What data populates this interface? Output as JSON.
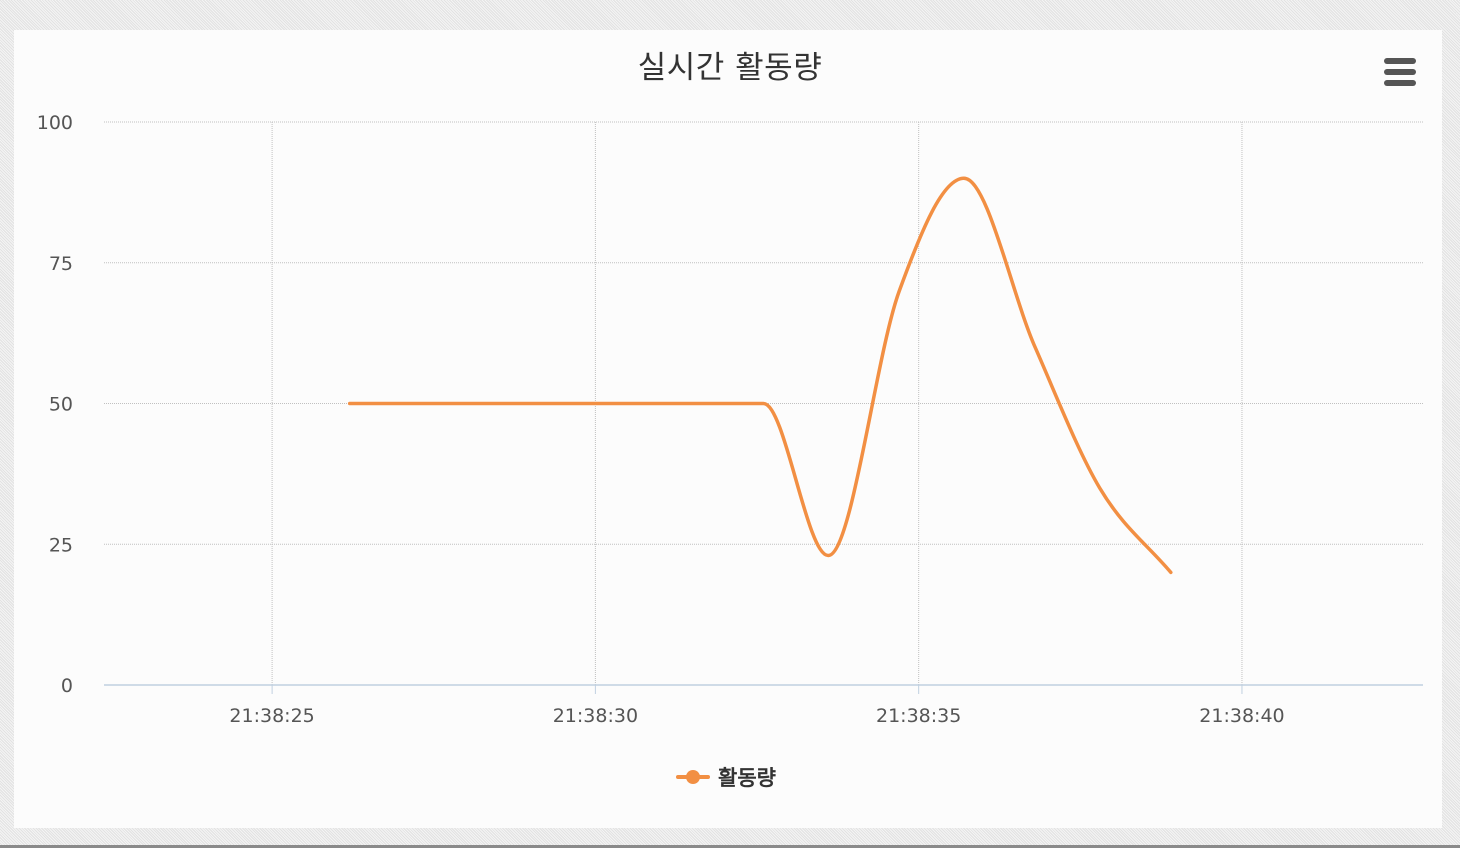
{
  "chart": {
    "menu_icon": "hamburger-menu-icon",
    "accent_color": "#f28f43",
    "grid_color": "#c0c0c0",
    "axis_color": "#c0d0e0"
  },
  "chart_data": {
    "type": "line",
    "title": "실시간 활동량",
    "xlabel": "",
    "ylabel": "",
    "ylim": [
      0,
      100
    ],
    "yticks": [
      0,
      25,
      50,
      75,
      100
    ],
    "xlim": [
      "21:38:22.4",
      "21:38:42.8"
    ],
    "xticks": [
      "21:38:25",
      "21:38:30",
      "21:38:35",
      "21:38:40"
    ],
    "grid": true,
    "smooth": true,
    "legend_position": "bottom-center",
    "series": [
      {
        "name": "활동량",
        "color": "#f28f43",
        "points": [
          [
            "21:38:26.2",
            50
          ],
          [
            "21:38:32.6",
            50
          ],
          [
            "21:38:33.6",
            23
          ],
          [
            "21:38:34.7",
            70
          ],
          [
            "21:38:35.7",
            90
          ],
          [
            "21:38:36.8",
            60
          ],
          [
            "21:38:37.8",
            35
          ],
          [
            "21:38:38.9",
            20
          ]
        ]
      }
    ]
  }
}
